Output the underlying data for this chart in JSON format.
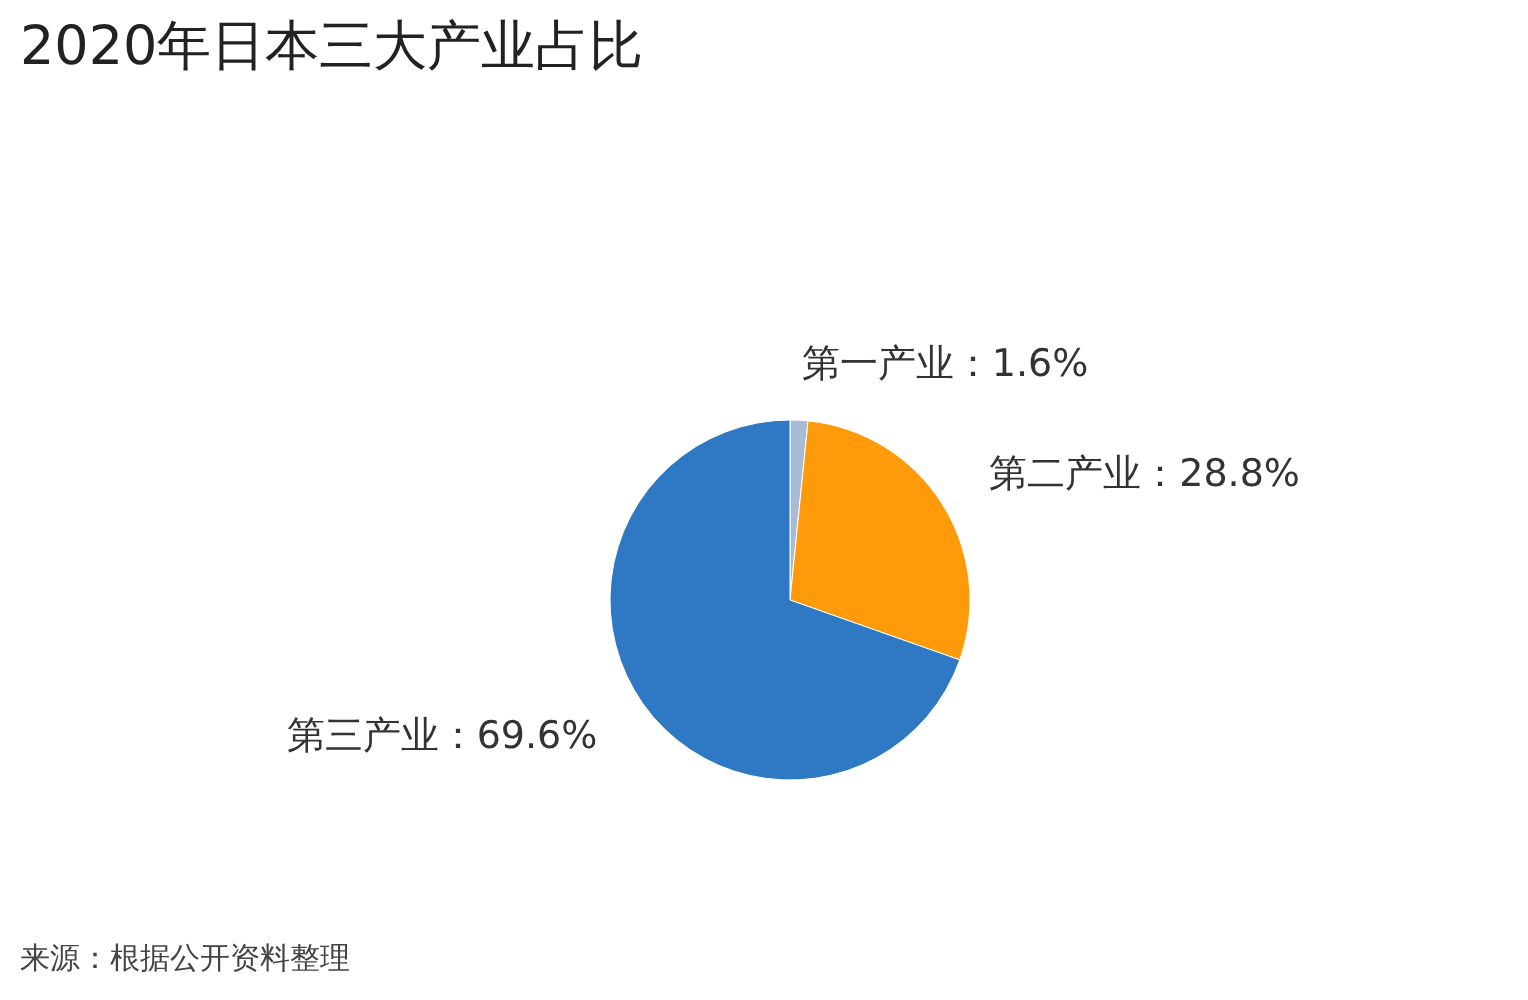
{
  "chart_data": {
    "type": "pie",
    "title": "2020年日本三大产业占比",
    "categories": [
      "第一产业",
      "第二产业",
      "第三产业"
    ],
    "values": [
      1.6,
      28.8,
      69.6
    ],
    "value_labels": [
      "1.6%",
      "28.8%",
      "69.6%"
    ],
    "colors": [
      "#a9bcd6",
      "#ff9a0a",
      "#2e78c4"
    ],
    "legend": false,
    "annotations": [
      "来源：根据公开资料整理"
    ]
  }
}
